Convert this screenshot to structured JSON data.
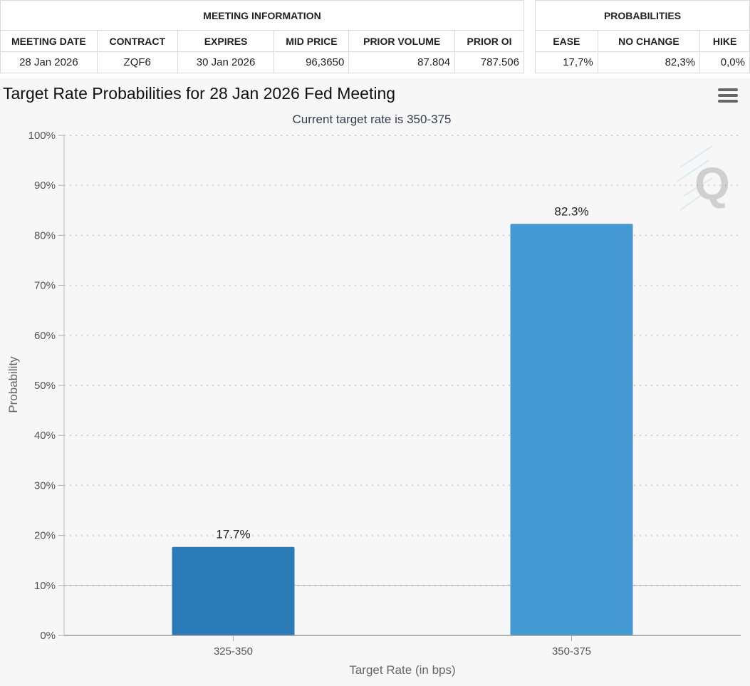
{
  "meeting_info": {
    "group_label": "MEETING INFORMATION",
    "columns": [
      "MEETING DATE",
      "CONTRACT",
      "EXPIRES",
      "MID PRICE",
      "PRIOR VOLUME",
      "PRIOR OI"
    ],
    "row": [
      "28 Jan 2026",
      "ZQF6",
      "30 Jan 2026",
      "96,3650",
      "87.804",
      "787.506"
    ]
  },
  "probabilities": {
    "group_label": "PROBABILITIES",
    "columns": [
      "EASE",
      "NO CHANGE",
      "HIKE"
    ],
    "row": [
      "17,7%",
      "82,3%",
      "0,0%"
    ]
  },
  "chart_data": {
    "type": "bar",
    "title": "Target Rate Probabilities for 28 Jan 2026 Fed Meeting",
    "subtitle": "Current target rate is 350-375",
    "xlabel": "Target Rate (in bps)",
    "ylabel": "Probability",
    "categories": [
      "325-350",
      "350-375"
    ],
    "values": [
      17.7,
      82.3
    ],
    "data_labels": [
      "17.7%",
      "82.3%"
    ],
    "ylim": [
      0,
      100
    ],
    "yticks": [
      0,
      10,
      20,
      30,
      40,
      50,
      60,
      70,
      80,
      90,
      100
    ],
    "ytick_labels": [
      "0%",
      "10%",
      "20%",
      "30%",
      "40%",
      "50%",
      "60%",
      "70%",
      "80%",
      "90%",
      "100%"
    ],
    "colors": [
      "#2b7bb9",
      "#4499d3"
    ],
    "grid": "dotted horizontal",
    "legend": "none"
  }
}
